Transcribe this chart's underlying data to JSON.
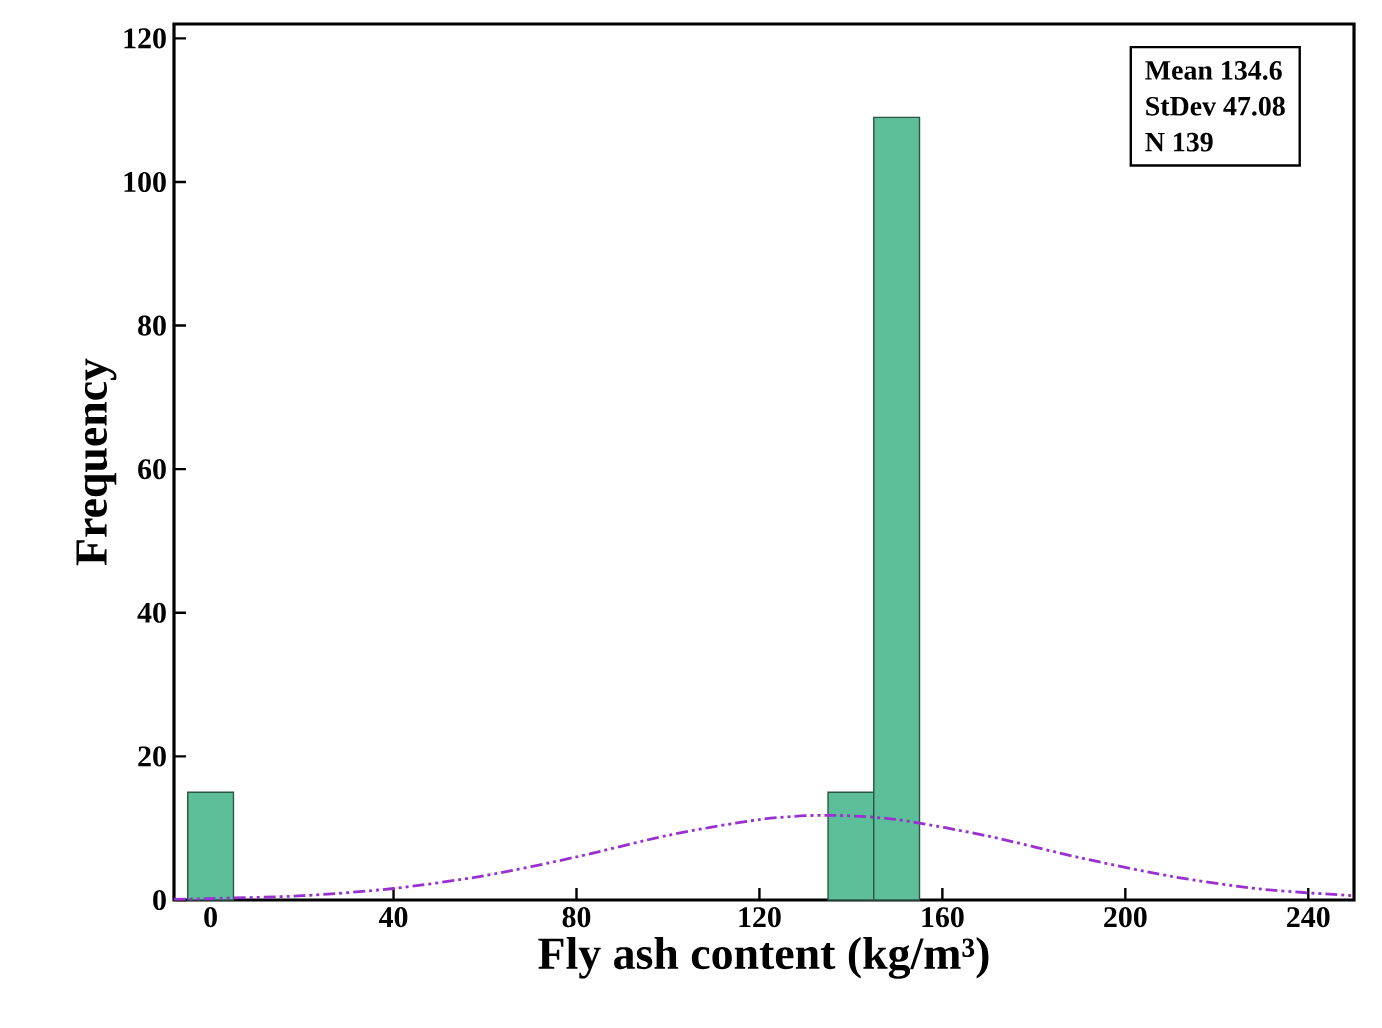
{
  "chart_data": {
    "type": "histogram",
    "xlabel": "Fly ash content (kg/m³)",
    "ylabel": "Frequency",
    "bins": [
      -5,
      5,
      15,
      25,
      35,
      45,
      55,
      65,
      75,
      85,
      95,
      105,
      115,
      125,
      135,
      145,
      155
    ],
    "values": [
      15,
      0,
      0,
      0,
      0,
      0,
      0,
      0,
      0,
      0,
      0,
      0,
      0,
      0,
      15,
      109
    ],
    "color": "#5dbf9a",
    "series": [
      {
        "type": "line",
        "color": "#9b30d0",
        "line_style": "dashed",
        "x": [
          -8,
          0,
          20,
          40,
          60,
          80,
          100,
          120,
          134.6,
          150,
          170,
          190,
          210,
          230,
          250
        ],
        "values": [
          0.1,
          0.2,
          0.6,
          1.6,
          3.4,
          6,
          9,
          11.2,
          11.8,
          11.2,
          8.9,
          5.9,
          3.3,
          1.5,
          0.6
        ]
      }
    ],
    "xlim": [
      -8,
      250
    ],
    "ylim": [
      0,
      122
    ],
    "xticks": [
      0,
      40,
      80,
      120,
      160,
      200,
      240
    ],
    "yticks": [
      0,
      20,
      40,
      60,
      80,
      100,
      120
    ],
    "grid": false,
    "annotations": [
      "Mean 134.6",
      "StDev 47.08",
      "N 139"
    ]
  }
}
